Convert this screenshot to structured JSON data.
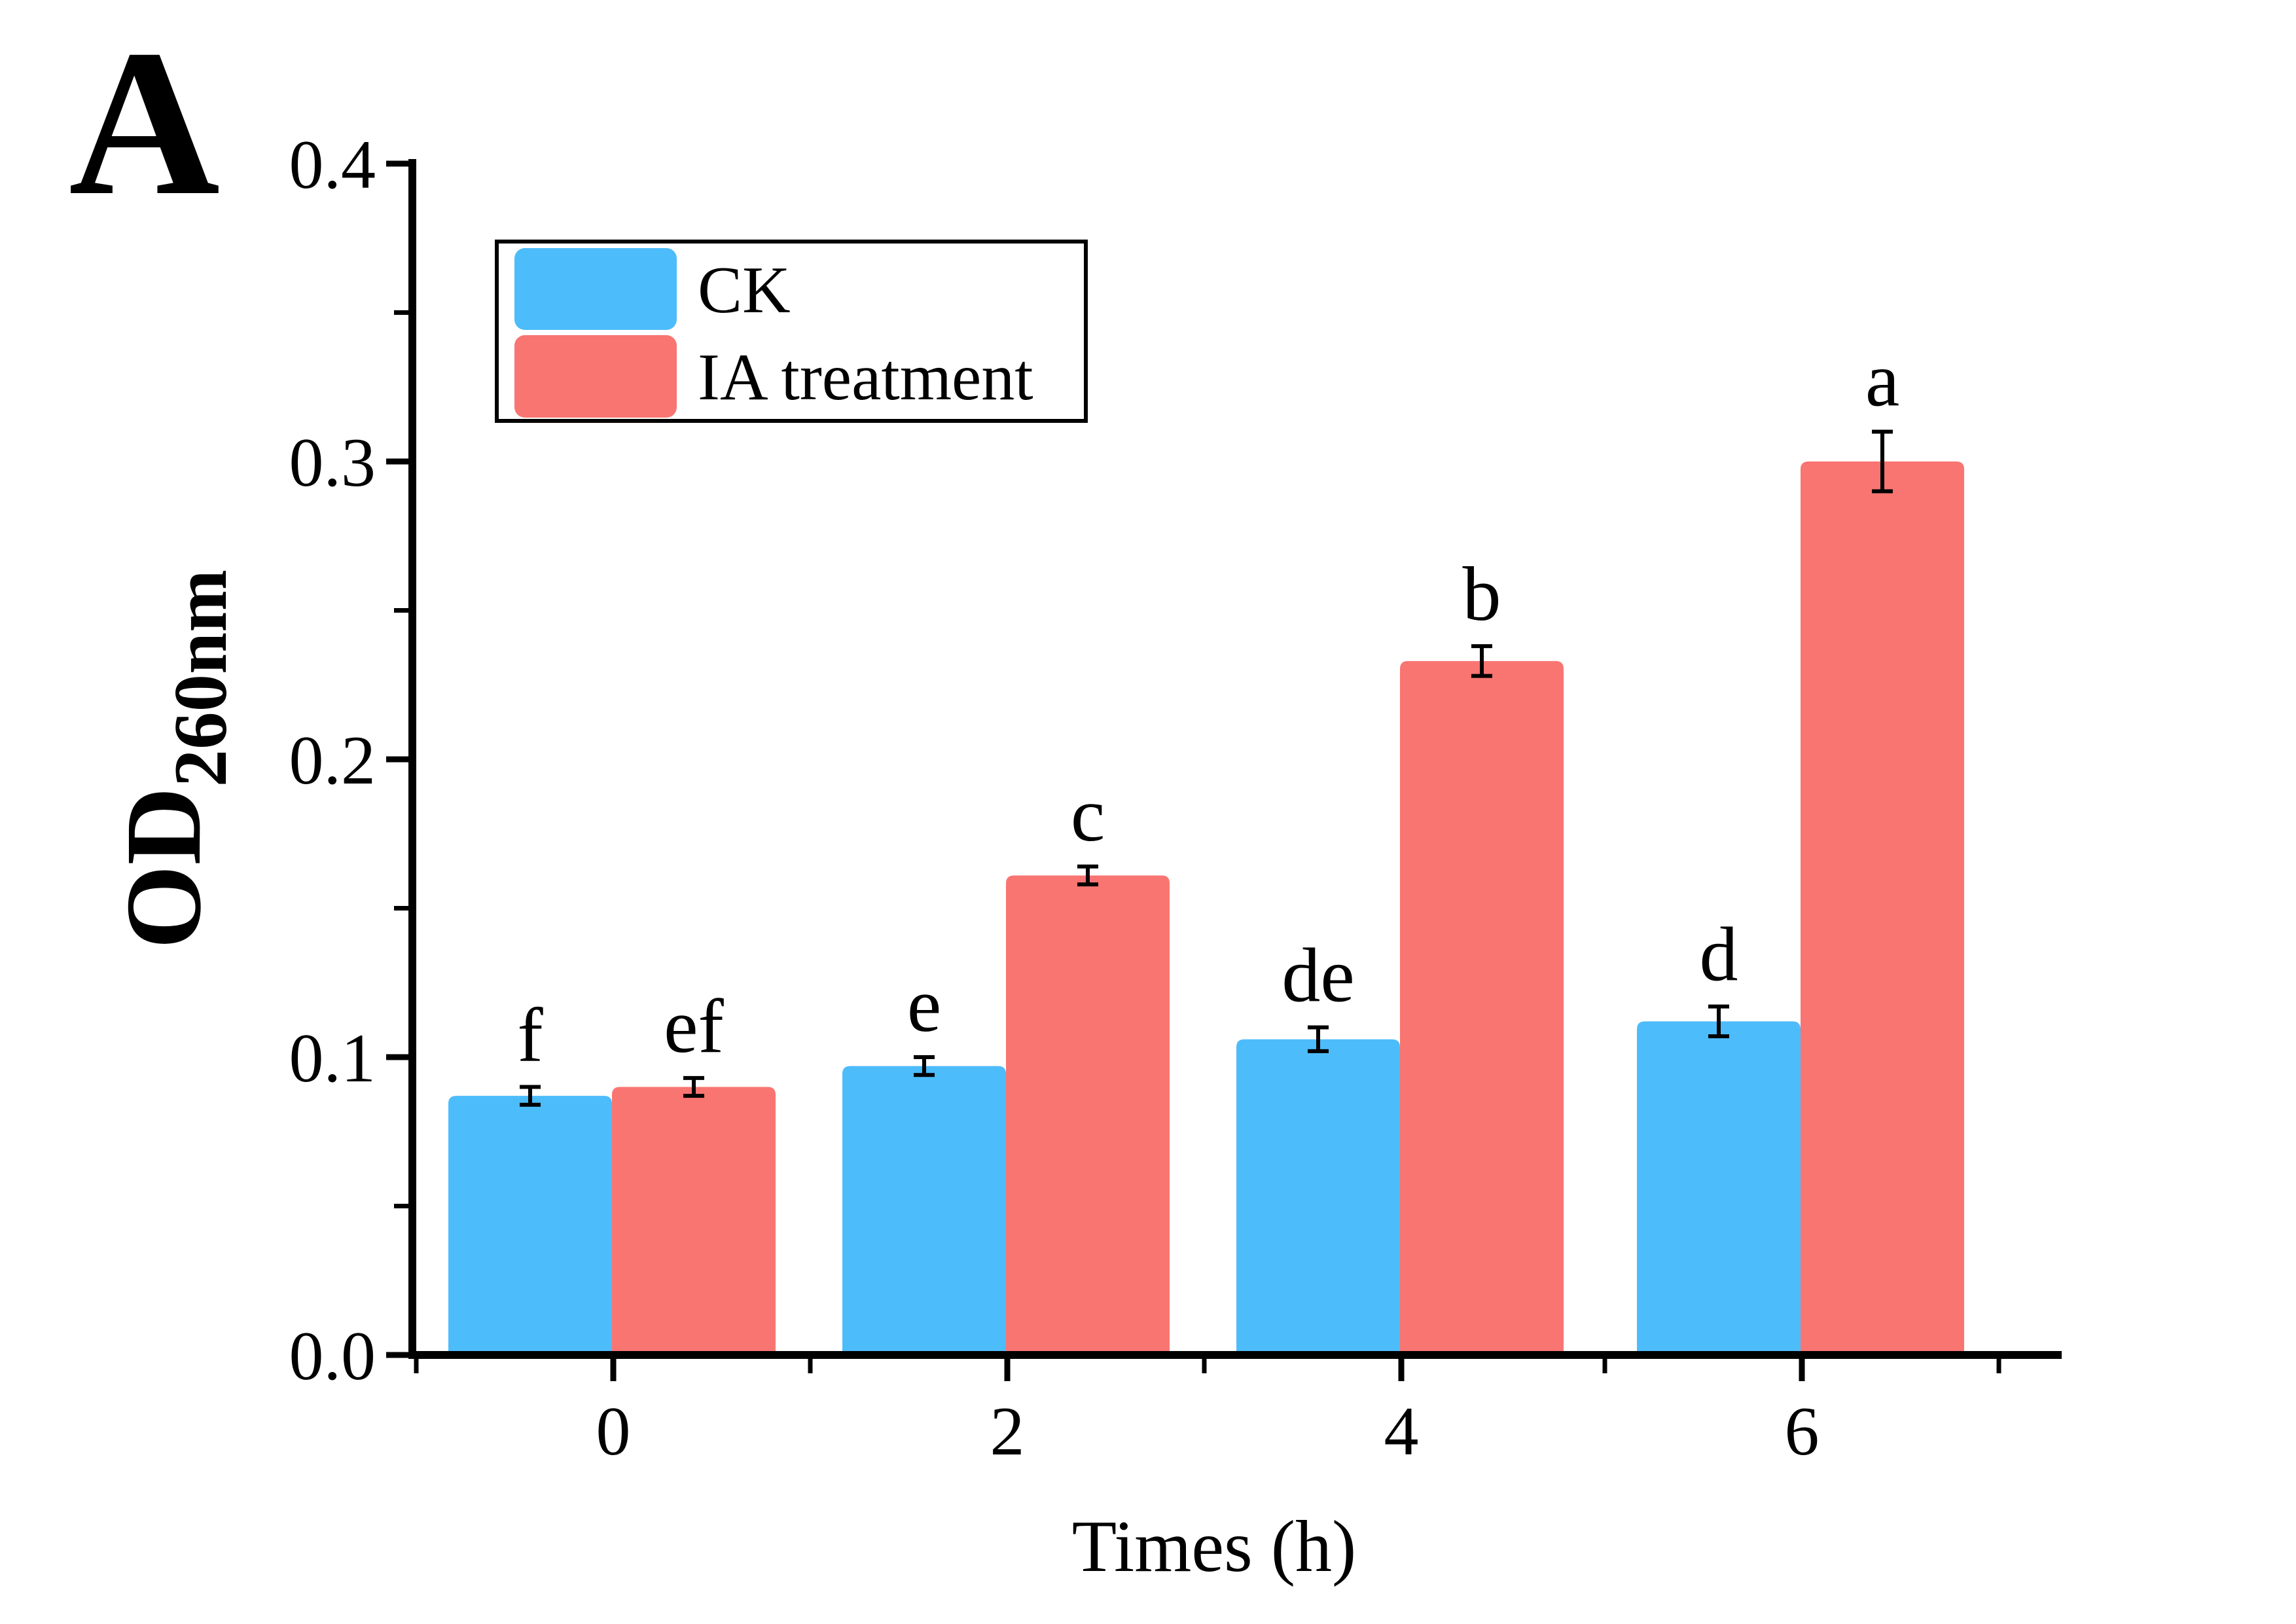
{
  "panel_label": "A",
  "colors": {
    "ck_bar": "#4DBCFA",
    "ia_bar": "#F97572",
    "axis": "#000000",
    "background": "#ffffff"
  },
  "legend": {
    "position": "upper-left",
    "items": [
      {
        "label": "CK"
      },
      {
        "label": "IA treatment"
      }
    ]
  },
  "chart_data": {
    "type": "bar",
    "title": "",
    "xlabel": "Times (h)",
    "ylabel_base": "OD",
    "ylabel_sub": "260nm",
    "categories": [
      "0",
      "2",
      "4",
      "6"
    ],
    "series": [
      {
        "name": "CK",
        "color": "#4DBCFA",
        "values": [
          0.087,
          0.097,
          0.106,
          0.112
        ],
        "errors": [
          0.003,
          0.003,
          0.004,
          0.005
        ],
        "letters": [
          "f",
          "e",
          "de",
          "d"
        ]
      },
      {
        "name": "IA treatment",
        "color": "#F97572",
        "values": [
          0.09,
          0.161,
          0.233,
          0.3
        ],
        "errors": [
          0.003,
          0.003,
          0.005,
          0.01
        ],
        "letters": [
          "ef",
          "c",
          "b",
          "a"
        ]
      }
    ],
    "ylim": [
      0.0,
      0.4
    ],
    "yticks": [
      0.0,
      0.1,
      0.2,
      0.3,
      0.4
    ],
    "ytick_labels": [
      "0.0",
      "0.1",
      "0.2",
      "0.3",
      "0.4"
    ],
    "y_minor_step": 0.05,
    "x_minor_ticks_between_categories": true,
    "grid": false,
    "error_bars": "plus-minus-caps",
    "legend_position": "upper-left"
  }
}
